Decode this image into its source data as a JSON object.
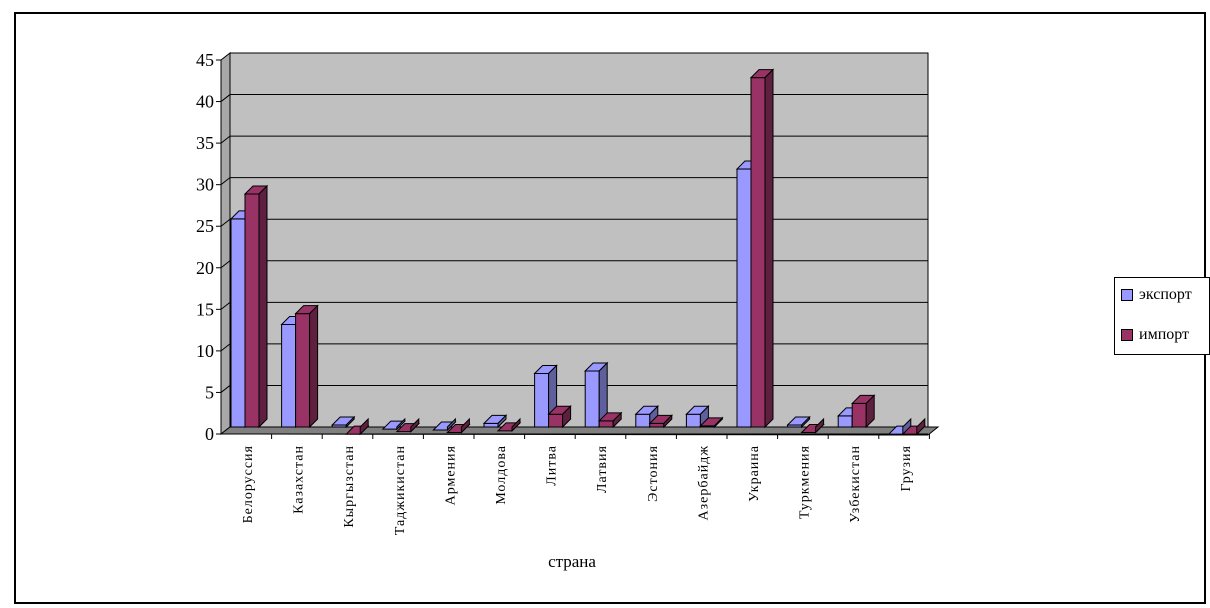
{
  "chart_data": {
    "type": "bar",
    "title": "",
    "xlabel": "страна",
    "ylabel": "",
    "ylim": [
      0,
      45
    ],
    "yticks": [
      0,
      5,
      10,
      15,
      20,
      25,
      30,
      35,
      40,
      45
    ],
    "grid": true,
    "legend_position": "right",
    "categories": [
      "Белоруссия",
      "Казахстан",
      "Кыргызстан",
      "Таджикистан",
      "Армения",
      "Молдова",
      "Литва",
      "Латвия",
      "Эстония",
      "Азербайдж",
      "Украина",
      "Туркмения",
      "Узбекистан",
      "Грузия"
    ],
    "series": [
      {
        "name": "экспорт",
        "color": "#9999FF",
        "values": [
          26,
          13.3,
          1.2,
          0.7,
          0.6,
          1.4,
          7.4,
          7.7,
          2.5,
          2.5,
          32,
          1.2,
          2.3,
          0.1
        ]
      },
      {
        "name": "импорт",
        "color": "#993366",
        "values": [
          29,
          14.6,
          0.1,
          0.4,
          0.3,
          0.5,
          2.5,
          1.7,
          1.4,
          1.1,
          43,
          0.3,
          3.8,
          0.1
        ]
      }
    ],
    "colors": {
      "plot_back": "#C0C0C0",
      "floor": "#808080",
      "wall_side": "#A8A8A8"
    }
  }
}
